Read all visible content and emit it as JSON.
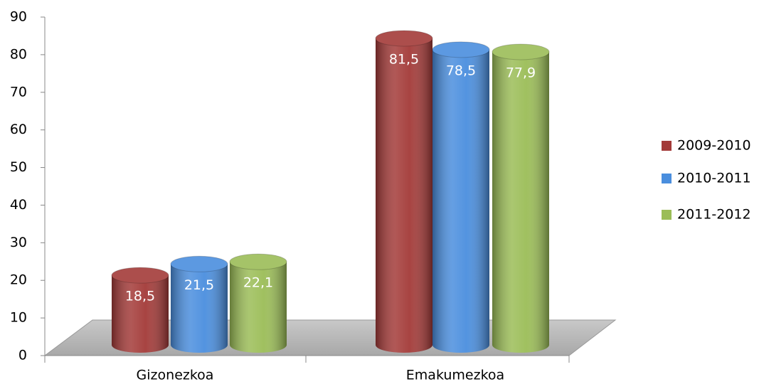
{
  "chart_data": {
    "type": "bar",
    "categories": [
      "Gizonezkoa",
      "Emakumezkoa"
    ],
    "series": [
      {
        "name": "2009-2010",
        "color": "#a33a38",
        "values": [
          18.5,
          81.5
        ],
        "value_labels": [
          "18,5",
          "81,5"
        ]
      },
      {
        "name": "2010-2011",
        "color": "#4a8ede",
        "values": [
          21.5,
          78.5
        ],
        "value_labels": [
          "21,5",
          "78,5"
        ]
      },
      {
        "name": "2011-2012",
        "color": "#9bbd57",
        "values": [
          22.1,
          77.9
        ],
        "value_labels": [
          "22,1",
          "77,9"
        ]
      }
    ],
    "ylim": [
      0,
      90
    ],
    "yticks": [
      0,
      10,
      20,
      30,
      40,
      50,
      60,
      70,
      80,
      90
    ],
    "legend": "right"
  }
}
